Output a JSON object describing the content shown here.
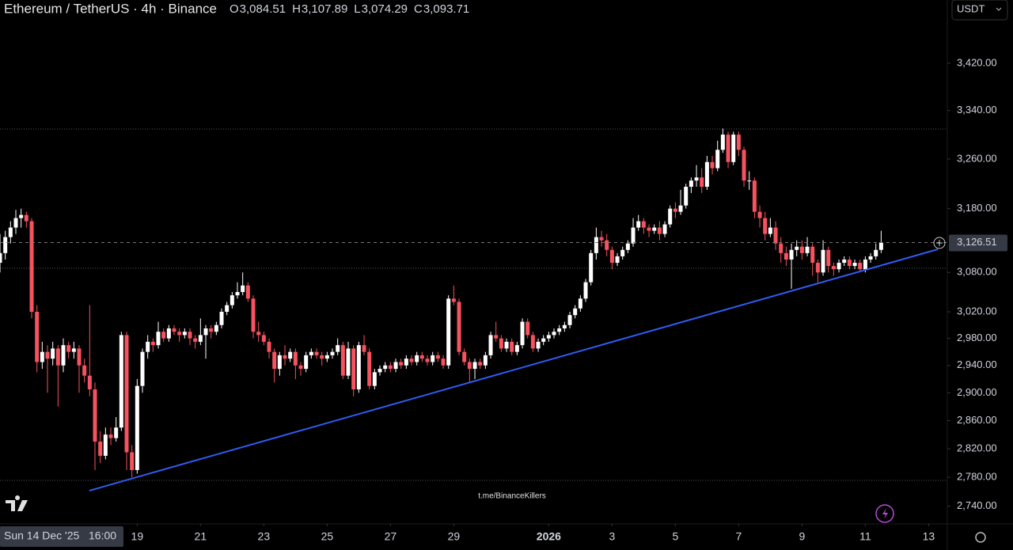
{
  "chart_data": {
    "type": "candlestick",
    "title": "Ethereum / TetherUS · 4h · Binance",
    "ohlc_legend": [
      {
        "label": "O",
        "value": "3,084.51"
      },
      {
        "label": "H",
        "value": "3,107.89"
      },
      {
        "label": "L",
        "value": "3,074.29"
      },
      {
        "label": "C",
        "value": "3,093.71"
      }
    ],
    "currency": "USDT",
    "annotation": "t.me/BinanceKillers",
    "crosshair": {
      "date": "Sun 14 Dec '25",
      "time": "16:00"
    },
    "last_price_label": "3,126.51",
    "log_scale": true,
    "up_color": "#ffffff",
    "down_color": "#f7525f",
    "trendline_color": "#2f5cf0",
    "ylim": [
      2718,
      3530
    ],
    "yticks": [
      {
        "value": 2740,
        "label": "2,740.00"
      },
      {
        "value": 2780,
        "label": "2,780.00"
      },
      {
        "value": 2820,
        "label": "2,820.00"
      },
      {
        "value": 2860,
        "label": "2,860.00"
      },
      {
        "value": 2900,
        "label": "2,900.00"
      },
      {
        "value": 2940,
        "label": "2,940.00"
      },
      {
        "value": 2980,
        "label": "2,980.00"
      },
      {
        "value": 3020,
        "label": "3,020.00"
      },
      {
        "value": 3080,
        "label": "3,080.00"
      },
      {
        "value": 3180,
        "label": "3,180.00"
      },
      {
        "value": 3260,
        "label": "3,260.00"
      },
      {
        "value": 3340,
        "label": "3,340.00"
      },
      {
        "value": 3420,
        "label": "3,420.00"
      }
    ],
    "xticks": [
      {
        "value": 26,
        "label": "19"
      },
      {
        "value": 38,
        "label": "21"
      },
      {
        "value": 50,
        "label": "23"
      },
      {
        "value": 62,
        "label": "25"
      },
      {
        "value": 74,
        "label": "27"
      },
      {
        "value": 86,
        "label": "29"
      },
      {
        "value": 104,
        "label": "2026"
      },
      {
        "value": 116,
        "label": "3"
      },
      {
        "value": 128,
        "label": "5"
      },
      {
        "value": 140,
        "label": "7"
      },
      {
        "value": 152,
        "label": "9"
      },
      {
        "value": 164,
        "label": "11"
      },
      {
        "value": 176,
        "label": "13"
      }
    ],
    "ohlc": [
      [
        3095,
        3140,
        3080,
        3110
      ],
      [
        3110,
        3145,
        3100,
        3135
      ],
      [
        3135,
        3160,
        3125,
        3150
      ],
      [
        3150,
        3178,
        3140,
        3165
      ],
      [
        3165,
        3180,
        3150,
        3170
      ],
      [
        3170,
        3175,
        3150,
        3160
      ],
      [
        3160,
        3165,
        3010,
        3020
      ],
      [
        3020,
        3030,
        2930,
        2945
      ],
      [
        2945,
        2975,
        2935,
        2960
      ],
      [
        2960,
        2970,
        2900,
        2950
      ],
      [
        2950,
        2975,
        2940,
        2965
      ],
      [
        2965,
        2970,
        2880,
        2940
      ],
      [
        2940,
        2980,
        2930,
        2970
      ],
      [
        2970,
        2975,
        2950,
        2960
      ],
      [
        2960,
        2975,
        2950,
        2965
      ],
      [
        2965,
        2970,
        2900,
        2940
      ],
      [
        2940,
        2950,
        2915,
        2925
      ],
      [
        2925,
        3030,
        2895,
        2905
      ],
      [
        2905,
        2915,
        2790,
        2830
      ],
      [
        2830,
        2845,
        2800,
        2810
      ],
      [
        2810,
        2850,
        2805,
        2840
      ],
      [
        2840,
        2850,
        2825,
        2835
      ],
      [
        2835,
        2865,
        2830,
        2850
      ],
      [
        2850,
        2990,
        2845,
        2985
      ],
      [
        2985,
        2990,
        2790,
        2815
      ],
      [
        2815,
        2825,
        2780,
        2790
      ],
      [
        2790,
        2920,
        2785,
        2910
      ],
      [
        2910,
        2965,
        2900,
        2960
      ],
      [
        2960,
        2985,
        2950,
        2975
      ],
      [
        2975,
        2980,
        2960,
        2970
      ],
      [
        2970,
        3005,
        2965,
        2990
      ],
      [
        2990,
        2995,
        2975,
        2980
      ],
      [
        2980,
        3000,
        2975,
        2995
      ],
      [
        2995,
        3000,
        2985,
        2990
      ],
      [
        2990,
        2995,
        2975,
        2985
      ],
      [
        2985,
        2995,
        2980,
        2990
      ],
      [
        2990,
        2995,
        2970,
        2980
      ],
      [
        2980,
        2985,
        2965,
        2975
      ],
      [
        2975,
        3010,
        2970,
        2985
      ],
      [
        2985,
        3000,
        2950,
        2995
      ],
      [
        2995,
        3000,
        2980,
        2990
      ],
      [
        2990,
        3005,
        2985,
        3000
      ],
      [
        3000,
        3025,
        2995,
        3020
      ],
      [
        3020,
        3035,
        3015,
        3030
      ],
      [
        3030,
        3050,
        3025,
        3045
      ],
      [
        3045,
        3065,
        3040,
        3050
      ],
      [
        3050,
        3080,
        3045,
        3060
      ],
      [
        3060,
        3065,
        3035,
        3040
      ],
      [
        3040,
        3045,
        2980,
        2990
      ],
      [
        2990,
        3005,
        2975,
        2985
      ],
      [
        2985,
        2990,
        2970,
        2975
      ],
      [
        2975,
        2980,
        2950,
        2960
      ],
      [
        2960,
        2965,
        2915,
        2935
      ],
      [
        2935,
        2960,
        2925,
        2955
      ],
      [
        2955,
        2970,
        2940,
        2950
      ],
      [
        2950,
        2965,
        2945,
        2960
      ],
      [
        2960,
        2965,
        2920,
        2940
      ],
      [
        2940,
        2945,
        2925,
        2935
      ],
      [
        2935,
        2960,
        2930,
        2955
      ],
      [
        2955,
        2965,
        2950,
        2960
      ],
      [
        2960,
        2965,
        2950,
        2955
      ],
      [
        2955,
        2960,
        2940,
        2950
      ],
      [
        2950,
        2960,
        2945,
        2955
      ],
      [
        2955,
        2965,
        2950,
        2960
      ],
      [
        2960,
        2980,
        2955,
        2970
      ],
      [
        2970,
        2975,
        2920,
        2925
      ],
      [
        2925,
        2975,
        2920,
        2965
      ],
      [
        2965,
        2970,
        2895,
        2905
      ],
      [
        2905,
        2975,
        2900,
        2970
      ],
      [
        2970,
        2985,
        2955,
        2960
      ],
      [
        2960,
        2965,
        2905,
        2910
      ],
      [
        2910,
        2935,
        2905,
        2930
      ],
      [
        2930,
        2940,
        2925,
        2935
      ],
      [
        2935,
        2945,
        2930,
        2940
      ],
      [
        2940,
        2945,
        2930,
        2935
      ],
      [
        2935,
        2950,
        2930,
        2945
      ],
      [
        2945,
        2950,
        2935,
        2940
      ],
      [
        2940,
        2955,
        2935,
        2950
      ],
      [
        2950,
        2955,
        2940,
        2945
      ],
      [
        2945,
        2960,
        2940,
        2955
      ],
      [
        2955,
        2960,
        2945,
        2950
      ],
      [
        2950,
        2955,
        2940,
        2945
      ],
      [
        2945,
        2960,
        2940,
        2955
      ],
      [
        2955,
        2960,
        2945,
        2950
      ],
      [
        2950,
        2955,
        2935,
        2940
      ],
      [
        2940,
        3045,
        2935,
        3040
      ],
      [
        3040,
        3060,
        3030,
        3035
      ],
      [
        3035,
        3040,
        2955,
        2960
      ],
      [
        2960,
        2965,
        2940,
        2945
      ],
      [
        2945,
        2950,
        2915,
        2935
      ],
      [
        2935,
        2950,
        2920,
        2945
      ],
      [
        2945,
        2950,
        2935,
        2940
      ],
      [
        2940,
        2960,
        2935,
        2955
      ],
      [
        2955,
        2990,
        2950,
        2985
      ],
      [
        2985,
        3005,
        2975,
        2980
      ],
      [
        2980,
        2985,
        2960,
        2965
      ],
      [
        2965,
        2980,
        2960,
        2975
      ],
      [
        2975,
        2980,
        2955,
        2960
      ],
      [
        2960,
        2975,
        2955,
        2970
      ],
      [
        2970,
        3010,
        2965,
        3005
      ],
      [
        3005,
        3010,
        2980,
        2985
      ],
      [
        2985,
        2990,
        2960,
        2965
      ],
      [
        2965,
        2980,
        2960,
        2975
      ],
      [
        2975,
        2985,
        2970,
        2980
      ],
      [
        2980,
        2990,
        2975,
        2985
      ],
      [
        2985,
        2995,
        2980,
        2990
      ],
      [
        2990,
        3000,
        2985,
        2995
      ],
      [
        2995,
        3005,
        2990,
        3000
      ],
      [
        3000,
        3020,
        2995,
        3015
      ],
      [
        3015,
        3030,
        3010,
        3025
      ],
      [
        3025,
        3045,
        3020,
        3040
      ],
      [
        3040,
        3070,
        3035,
        3065
      ],
      [
        3065,
        3115,
        3060,
        3110
      ],
      [
        3110,
        3150,
        3100,
        3135
      ],
      [
        3135,
        3145,
        3120,
        3130
      ],
      [
        3130,
        3140,
        3105,
        3115
      ],
      [
        3115,
        3120,
        3085,
        3095
      ],
      [
        3095,
        3110,
        3090,
        3105
      ],
      [
        3105,
        3120,
        3100,
        3115
      ],
      [
        3115,
        3130,
        3110,
        3125
      ],
      [
        3125,
        3165,
        3120,
        3150
      ],
      [
        3150,
        3170,
        3145,
        3160
      ],
      [
        3160,
        3165,
        3140,
        3150
      ],
      [
        3150,
        3155,
        3135,
        3145
      ],
      [
        3145,
        3155,
        3140,
        3150
      ],
      [
        3150,
        3160,
        3130,
        3140
      ],
      [
        3140,
        3160,
        3135,
        3155
      ],
      [
        3155,
        3185,
        3150,
        3180
      ],
      [
        3180,
        3190,
        3165,
        3175
      ],
      [
        3175,
        3210,
        3170,
        3185
      ],
      [
        3185,
        3220,
        3180,
        3215
      ],
      [
        3215,
        3230,
        3205,
        3225
      ],
      [
        3225,
        3250,
        3215,
        3230
      ],
      [
        3230,
        3245,
        3205,
        3215
      ],
      [
        3215,
        3265,
        3210,
        3255
      ],
      [
        3255,
        3265,
        3235,
        3245
      ],
      [
        3245,
        3290,
        3240,
        3275
      ],
      [
        3275,
        3310,
        3270,
        3300
      ],
      [
        3300,
        3305,
        3245,
        3255
      ],
      [
        3255,
        3305,
        3250,
        3300
      ],
      [
        3300,
        3305,
        3265,
        3275
      ],
      [
        3275,
        3280,
        3215,
        3225
      ],
      [
        3225,
        3240,
        3210,
        3225
      ],
      [
        3225,
        3230,
        3165,
        3175
      ],
      [
        3175,
        3185,
        3150,
        3165
      ],
      [
        3165,
        3175,
        3130,
        3140
      ],
      [
        3140,
        3165,
        3135,
        3150
      ],
      [
        3150,
        3160,
        3115,
        3125
      ],
      [
        3125,
        3135,
        3095,
        3110
      ],
      [
        3110,
        3120,
        3090,
        3100
      ],
      [
        3100,
        3125,
        3055,
        3115
      ],
      [
        3115,
        3130,
        3105,
        3120
      ],
      [
        3120,
        3130,
        3100,
        3110
      ],
      [
        3110,
        3135,
        3105,
        3120
      ],
      [
        3120,
        3125,
        3075,
        3095
      ],
      [
        3095,
        3100,
        3065,
        3080
      ],
      [
        3080,
        3130,
        3075,
        3115
      ],
      [
        3115,
        3120,
        3080,
        3090
      ],
      [
        3090,
        3095,
        3075,
        3085
      ],
      [
        3085,
        3100,
        3080,
        3095
      ],
      [
        3095,
        3105,
        3090,
        3100
      ],
      [
        3100,
        3105,
        3085,
        3090
      ],
      [
        3090,
        3100,
        3085,
        3095
      ],
      [
        3095,
        3100,
        3080,
        3085
      ],
      [
        3085,
        3105,
        3080,
        3100
      ],
      [
        3100,
        3110,
        3095,
        3105
      ],
      [
        3105,
        3125,
        3100,
        3115
      ],
      [
        3115,
        3145,
        3110,
        3126.51
      ]
    ]
  }
}
